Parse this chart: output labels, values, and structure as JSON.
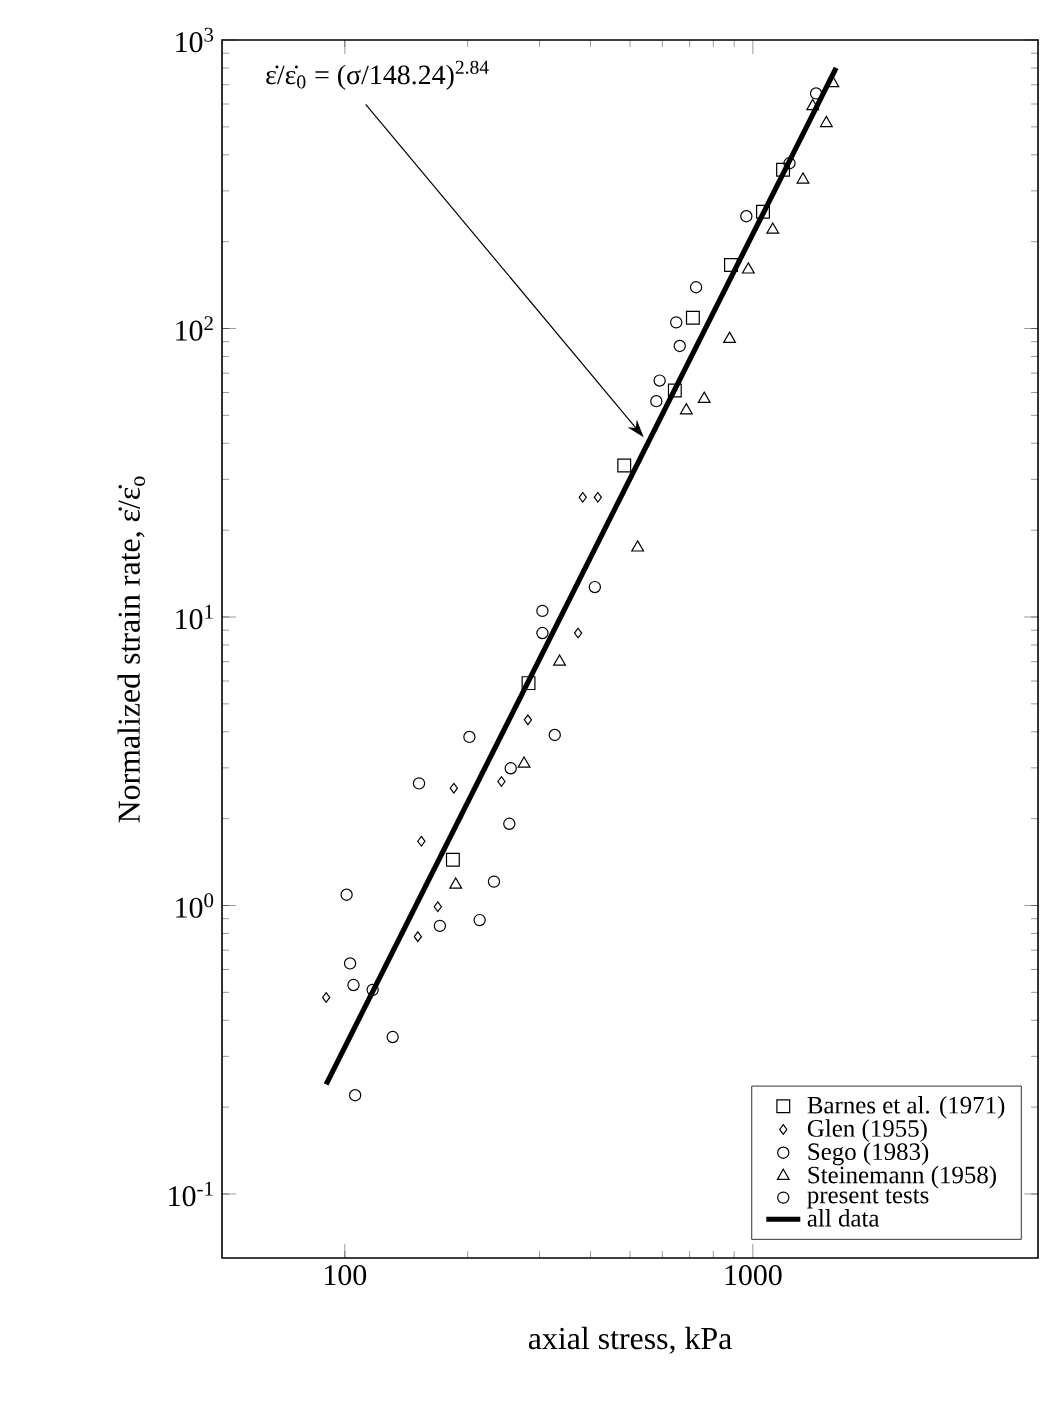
{
  "chart_data": {
    "type": "scatter",
    "xlabel": "axial stress, kPa",
    "ylabel": "Normalized strain rate, ε̇/ε̇$_{o}$",
    "log": "xy",
    "xlim": [
      50,
      5000
    ],
    "ylim": [
      0.06,
      1000
    ],
    "xticks": [
      100,
      1000
    ],
    "yticks": [
      {
        "value": 0.1,
        "label": "10$^{-1}$"
      },
      {
        "value": 1,
        "label": "10$^{0}$"
      },
      {
        "value": 10,
        "label": "10$^{1}$"
      },
      {
        "value": 100,
        "label": "10$^{2}$"
      },
      {
        "value": 1000,
        "label": "10$^{3}$"
      }
    ],
    "legend": "bottom right",
    "annotations": [
      {
        "text": "ε̇/ε̇$_{0}$ = (σ/148.24)$^{2.84}$",
        "x": 540,
        "y": 42
      }
    ],
    "series": [
      {
        "name": "Barnes et al. (1971)",
        "color": "#000000",
        "marker": "square",
        "x": [
          1186,
          1059,
          884,
          713,
          644,
          484,
          282,
          184
        ],
        "values": [
          355,
          254,
          166,
          109,
          61,
          33.5,
          5.9,
          1.44
        ]
      },
      {
        "name": "Glen (1955)",
        "color": "#000000",
        "marker": "diamond",
        "x": [
          383,
          417,
          373,
          281,
          185,
          154,
          169,
          151,
          90,
          242
        ],
        "values": [
          26,
          26,
          8.8,
          4.4,
          2.55,
          1.67,
          0.99,
          0.78,
          0.48,
          2.69
        ]
      },
      {
        "name": "Sego (1983)",
        "color": "#000000",
        "marker": "circle",
        "x": [
          1429,
          1230,
          964,
          726,
          649,
          662,
          591,
          580,
          305,
          305,
          202,
          152,
          101
        ],
        "values": [
          653,
          374,
          245,
          139,
          105,
          87,
          66,
          56,
          10.5,
          8.8,
          3.84,
          2.65,
          1.09
        ]
      },
      {
        "name": "Steinemann (1958)",
        "color": "#000000",
        "marker": "triangle",
        "x": [
          1571,
          1514,
          1402,
          1327,
          1119,
          975,
          877,
          760,
          687,
          522,
          336,
          275,
          187
        ],
        "values": [
          708,
          515,
          589,
          328,
          220,
          160,
          92,
          57,
          52,
          17.4,
          7.0,
          3.1,
          1.18
        ]
      },
      {
        "name": "present tests",
        "color": "#000000",
        "marker": "circle",
        "x": [
          410,
          327,
          255,
          253,
          232,
          214,
          171,
          103,
          105,
          117,
          131,
          106
        ],
        "values": [
          12.7,
          3.9,
          2.99,
          1.92,
          1.21,
          0.89,
          0.85,
          0.63,
          0.53,
          0.51,
          0.35,
          0.22
        ]
      },
      {
        "name": "all data",
        "type": "line",
        "color": "#000000",
        "marker": "none",
        "x": [
          90,
          1600
        ],
        "values": [
          0.24,
          800
        ]
      }
    ]
  }
}
